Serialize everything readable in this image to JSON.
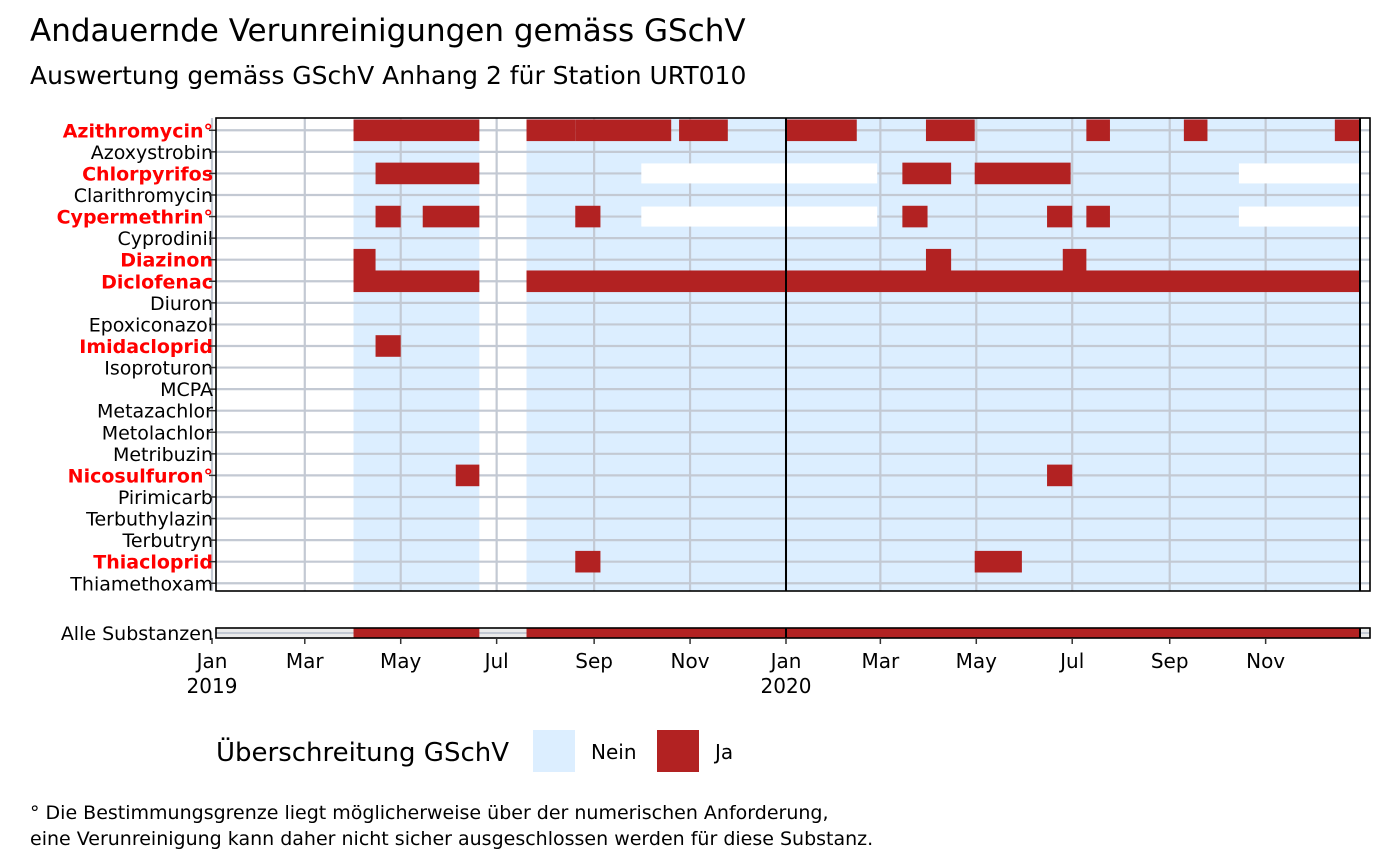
{
  "chart_data": {
    "type": "heatmap",
    "title": "Andauernde Verunreinigungen gemäss GSchV",
    "subtitle": "Auswertung gemäss GSchV Anhang 2 für Station URT010",
    "x_range": [
      "2019-01-01",
      "2020-12-31"
    ],
    "x_ticks": [
      {
        "date": "2019-01-01",
        "label": "Jan",
        "year": "2019"
      },
      {
        "date": "2019-03-01",
        "label": "Mar",
        "year": ""
      },
      {
        "date": "2019-05-01",
        "label": "May",
        "year": ""
      },
      {
        "date": "2019-07-01",
        "label": "Jul",
        "year": ""
      },
      {
        "date": "2019-09-01",
        "label": "Sep",
        "year": ""
      },
      {
        "date": "2019-11-01",
        "label": "Nov",
        "year": ""
      },
      {
        "date": "2020-01-01",
        "label": "Jan",
        "year": "2020"
      },
      {
        "date": "2020-03-01",
        "label": "Mar",
        "year": ""
      },
      {
        "date": "2020-05-01",
        "label": "May",
        "year": ""
      },
      {
        "date": "2020-07-01",
        "label": "Jul",
        "year": ""
      },
      {
        "date": "2020-09-01",
        "label": "Sep",
        "year": ""
      },
      {
        "date": "2020-11-01",
        "label": "Nov",
        "year": ""
      }
    ],
    "sampling_periods": [
      {
        "start": "2019-04-01",
        "end": "2019-06-20"
      },
      {
        "start": "2019-07-20",
        "end": "2020-12-31"
      }
    ],
    "year_separators": [
      "2020-01-01",
      "2020-12-31"
    ],
    "substances": [
      {
        "name": "Azithromycin°",
        "flagged": true,
        "exceed": [
          [
            "2019-04-01",
            "2019-06-20"
          ],
          [
            "2019-07-20",
            "2019-08-20"
          ],
          [
            "2019-08-20",
            "2019-10-20"
          ],
          [
            "2019-10-25",
            "2019-11-25"
          ],
          [
            "2020-01-01",
            "2020-02-15"
          ],
          [
            "2020-03-30",
            "2020-04-30"
          ],
          [
            "2020-07-10",
            "2020-07-25"
          ],
          [
            "2020-09-10",
            "2020-09-25"
          ],
          [
            "2020-12-15",
            "2020-12-31"
          ]
        ]
      },
      {
        "name": "Azoxystrobin",
        "flagged": false,
        "exceed": []
      },
      {
        "name": "Chlorpyrifos",
        "flagged": true,
        "gaps": [
          [
            "2019-10-01",
            "2020-02-28"
          ],
          [
            "2020-10-15",
            "2020-12-31"
          ]
        ],
        "exceed": [
          [
            "2019-04-15",
            "2019-06-20"
          ],
          [
            "2020-03-15",
            "2020-04-15"
          ],
          [
            "2020-04-30",
            "2020-06-30"
          ]
        ]
      },
      {
        "name": "Clarithromycin",
        "flagged": false,
        "exceed": []
      },
      {
        "name": "Cypermethrin°",
        "flagged": true,
        "gaps": [
          [
            "2019-10-01",
            "2020-02-28"
          ],
          [
            "2020-10-15",
            "2020-12-31"
          ]
        ],
        "exceed": [
          [
            "2019-04-15",
            "2019-05-01"
          ],
          [
            "2019-05-15",
            "2019-06-20"
          ],
          [
            "2019-08-20",
            "2019-09-05"
          ],
          [
            "2020-03-15",
            "2020-03-31"
          ],
          [
            "2020-06-15",
            "2020-07-01"
          ],
          [
            "2020-07-10",
            "2020-07-25"
          ]
        ]
      },
      {
        "name": "Cyprodinil",
        "flagged": false,
        "exceed": []
      },
      {
        "name": "Diazinon",
        "flagged": true,
        "exceed": [
          [
            "2019-04-01",
            "2019-04-15"
          ],
          [
            "2020-03-30",
            "2020-04-15"
          ],
          [
            "2020-06-25",
            "2020-07-10"
          ]
        ]
      },
      {
        "name": "Diclofenac",
        "flagged": true,
        "exceed": [
          [
            "2019-04-01",
            "2019-06-20"
          ],
          [
            "2019-07-20",
            "2020-12-31"
          ]
        ]
      },
      {
        "name": "Diuron",
        "flagged": false,
        "exceed": []
      },
      {
        "name": "Epoxiconazol",
        "flagged": false,
        "exceed": []
      },
      {
        "name": "Imidacloprid",
        "flagged": true,
        "exceed": [
          [
            "2019-04-15",
            "2019-05-01"
          ]
        ]
      },
      {
        "name": "Isoproturon",
        "flagged": false,
        "exceed": []
      },
      {
        "name": "MCPA",
        "flagged": false,
        "exceed": []
      },
      {
        "name": "Metazachlor",
        "flagged": false,
        "exceed": []
      },
      {
        "name": "Metolachlor",
        "flagged": false,
        "exceed": []
      },
      {
        "name": "Metribuzin",
        "flagged": false,
        "exceed": []
      },
      {
        "name": "Nicosulfuron°",
        "flagged": true,
        "exceed": [
          [
            "2019-06-05",
            "2019-06-20"
          ],
          [
            "2020-06-15",
            "2020-07-01"
          ]
        ]
      },
      {
        "name": "Pirimicarb",
        "flagged": false,
        "exceed": []
      },
      {
        "name": "Terbuthylazin",
        "flagged": false,
        "exceed": []
      },
      {
        "name": "Terbutryn",
        "flagged": false,
        "exceed": []
      },
      {
        "name": "Thiacloprid",
        "flagged": true,
        "exceed": [
          [
            "2019-08-20",
            "2019-09-05"
          ],
          [
            "2020-04-30",
            "2020-05-30"
          ]
        ]
      },
      {
        "name": "Thiamethoxam",
        "flagged": false,
        "exceed": []
      }
    ],
    "all_substances": {
      "name": "Alle Substanzen",
      "exceed": [
        [
          "2019-04-01",
          "2019-06-20"
        ],
        [
          "2019-07-20",
          "2020-12-31"
        ]
      ]
    },
    "legend": {
      "title": "Überschreitung GSchV",
      "placement": "bottom",
      "items": [
        {
          "label": "Nein",
          "color": "#dceeff"
        },
        {
          "label": "Ja",
          "color": "#b22222"
        }
      ]
    },
    "footnote": [
      "° Die Bestimmungsgrenze liegt möglicherweise über der numerischen Anforderung,",
      "eine Verunreinigung kann daher nicht sicher ausgeschlossen werden für diese Substanz."
    ],
    "colors": {
      "no_exceed": "#dceeff",
      "exceed": "#b22222",
      "flagged_label": "#ff0000",
      "grid": "#c3c9d3"
    }
  }
}
